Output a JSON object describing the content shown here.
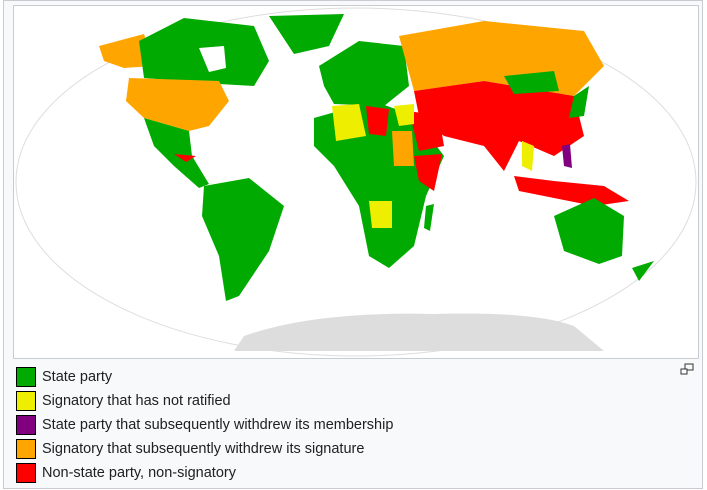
{
  "legend": [
    {
      "label": "State party",
      "color": "#00aa00"
    },
    {
      "label": "Signatory that has not ratified",
      "color": "#eeee00"
    },
    {
      "label": "State party that subsequently withdrew its membership",
      "color": "#800080"
    },
    {
      "label": "Signatory that subsequently withdrew its signature",
      "color": "#ffa500"
    },
    {
      "label": "Non-state party, non-signatory",
      "color": "#ff0000"
    }
  ],
  "icons": {
    "enlarge": "magnify-clip-icon"
  }
}
